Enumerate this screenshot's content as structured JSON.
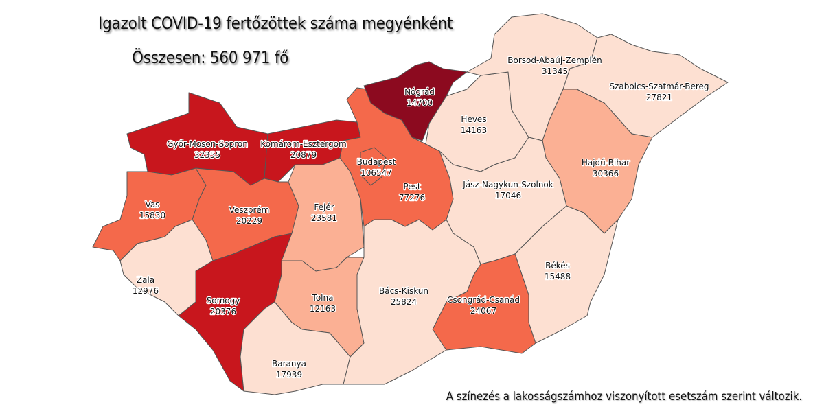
{
  "title": "Igazolt COVID-19 fertőzöttek száma megyénként",
  "total": "Összesen: 560 971 fő",
  "note": "A színezés a lakosságszámhoz viszonyított esetszám szerint változik.",
  "colors": {
    "c1": "#fde0d2",
    "c2": "#fbb094",
    "c3": "#f4694b",
    "c4": "#c8161d",
    "c5": "#8c0a1f"
  },
  "counties": [
    {
      "id": "gyor",
      "name": "Győr-Moson-Sopron",
      "cases": "32355",
      "cls": "c4"
    },
    {
      "id": "komarom",
      "name": "Komárom-Esztergom",
      "cases": "20879",
      "cls": "c4"
    },
    {
      "id": "vas",
      "name": "Vas",
      "cases": "15830",
      "cls": "c3"
    },
    {
      "id": "veszprem",
      "name": "Veszprém",
      "cases": "20229",
      "cls": "c3"
    },
    {
      "id": "zala",
      "name": "Zala",
      "cases": "12976",
      "cls": "c1"
    },
    {
      "id": "somogy",
      "name": "Somogy",
      "cases": "20376",
      "cls": "c4"
    },
    {
      "id": "fejer",
      "name": "Fejér",
      "cases": "23581",
      "cls": "c2"
    },
    {
      "id": "tolna",
      "name": "Tolna",
      "cases": "12163",
      "cls": "c2"
    },
    {
      "id": "baranya",
      "name": "Baranya",
      "cases": "17939",
      "cls": "c1"
    },
    {
      "id": "pest",
      "name": "Pest",
      "cases": "77276",
      "cls": "c3"
    },
    {
      "id": "budapest",
      "name": "Budapest",
      "cases": "106547",
      "cls": "c3"
    },
    {
      "id": "nograd",
      "name": "Nógrád",
      "cases": "14700",
      "cls": "c5"
    },
    {
      "id": "heves",
      "name": "Heves",
      "cases": "14163",
      "cls": "c1"
    },
    {
      "id": "borsod",
      "name": "Borsod-Abaúj-Zemplén",
      "cases": "31345",
      "cls": "c1"
    },
    {
      "id": "szabolcs",
      "name": "Szabolcs-Szatmár-Bereg",
      "cases": "27821",
      "cls": "c1"
    },
    {
      "id": "hajdu",
      "name": "Hajdú-Bihar",
      "cases": "30366",
      "cls": "c2"
    },
    {
      "id": "jasz",
      "name": "Jász-Nagykun-Szolnok",
      "cases": "17046",
      "cls": "c1"
    },
    {
      "id": "bekes",
      "name": "Békés",
      "cases": "15488",
      "cls": "c1"
    },
    {
      "id": "csongrad",
      "name": "Csongrád-Csanád",
      "cases": "24067",
      "cls": "c3"
    },
    {
      "id": "bacs",
      "name": "Bács-Kiskun",
      "cases": "25824",
      "cls": "c1"
    }
  ]
}
